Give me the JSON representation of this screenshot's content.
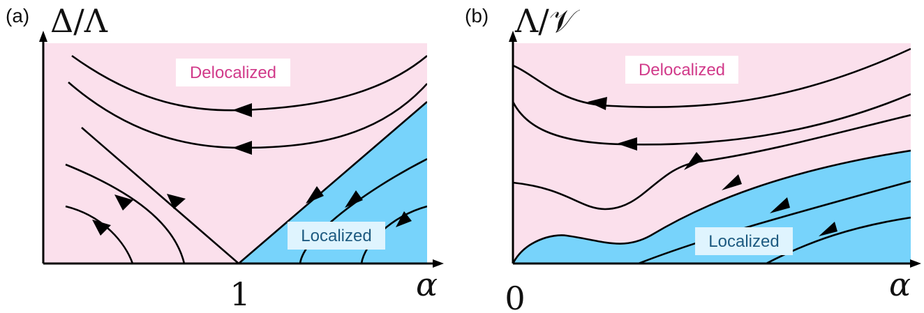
{
  "panels": [
    {
      "id": "a",
      "label": "(a)",
      "y_axis_label": "Δ/Λ",
      "x_axis_label": "α",
      "x_tick": "1",
      "regions": {
        "upper": {
          "label": "Delocalized",
          "color": "#fbe0ec",
          "text_color": "#d13a8a"
        },
        "lower": {
          "label": "Localized",
          "color": "#77d3fb",
          "text_color": "#1d5a80"
        }
      }
    },
    {
      "id": "b",
      "label": "(b)",
      "y_axis_label": "Λ/𝒱",
      "x_axis_label": "α",
      "x_tick": "0",
      "regions": {
        "upper": {
          "label": "Delocalized",
          "color": "#fbe0ec",
          "text_color": "#d13a8a"
        },
        "lower": {
          "label": "Localized",
          "color": "#77d3fb",
          "text_color": "#1d5a80"
        }
      }
    }
  ],
  "colors": {
    "axis": "#000000",
    "label_box": "#ffffff"
  }
}
